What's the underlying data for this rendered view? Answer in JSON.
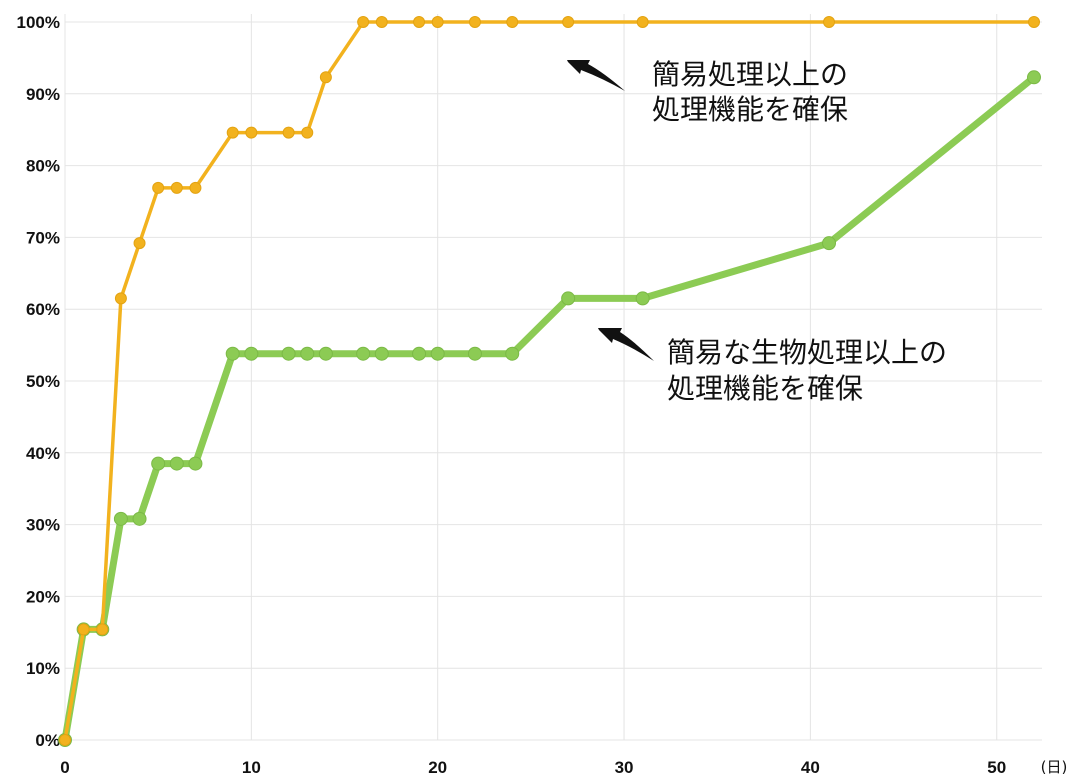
{
  "chart_data": {
    "type": "line",
    "title": "",
    "xlabel": "",
    "ylabel": "",
    "x_unit": "(日)",
    "xlim": [
      0,
      52
    ],
    "ylim": [
      0,
      100
    ],
    "x_ticks": [
      0,
      10,
      20,
      30,
      40,
      50
    ],
    "x_tick_labels": [
      "0",
      "10",
      "20",
      "30",
      "40",
      "50"
    ],
    "y_ticks": [
      0,
      10,
      20,
      30,
      40,
      50,
      60,
      70,
      80,
      90,
      100
    ],
    "y_tick_labels": [
      "0%",
      "10%",
      "20%",
      "30%",
      "40%",
      "50%",
      "60%",
      "70%",
      "80%",
      "90%",
      "100%"
    ],
    "grid": true,
    "legend": "none",
    "series": [
      {
        "color": "#F2B21E",
        "points": [
          [
            0,
            0
          ],
          [
            1,
            15.4
          ],
          [
            2,
            15.4
          ],
          [
            3,
            61.5
          ],
          [
            4,
            69.2
          ],
          [
            5,
            76.9
          ],
          [
            6,
            76.9
          ],
          [
            7,
            76.9
          ],
          [
            9,
            84.6
          ],
          [
            10,
            84.6
          ],
          [
            12,
            84.6
          ],
          [
            13,
            84.6
          ],
          [
            14,
            92.3
          ],
          [
            16,
            100
          ],
          [
            17,
            100
          ],
          [
            19,
            100
          ],
          [
            20,
            100
          ],
          [
            22,
            100
          ],
          [
            24,
            100
          ],
          [
            27,
            100
          ],
          [
            31,
            100
          ],
          [
            41,
            100
          ],
          [
            52,
            100
          ]
        ]
      },
      {
        "color": "#8CCB54",
        "points": [
          [
            0,
            0
          ],
          [
            1,
            15.4
          ],
          [
            2,
            15.4
          ],
          [
            3,
            30.8
          ],
          [
            4,
            30.8
          ],
          [
            5,
            38.5
          ],
          [
            6,
            38.5
          ],
          [
            7,
            38.5
          ],
          [
            9,
            53.8
          ],
          [
            10,
            53.8
          ],
          [
            12,
            53.8
          ],
          [
            13,
            53.8
          ],
          [
            14,
            53.8
          ],
          [
            16,
            53.8
          ],
          [
            17,
            53.8
          ],
          [
            19,
            53.8
          ],
          [
            20,
            53.8
          ],
          [
            22,
            53.8
          ],
          [
            24,
            53.8
          ],
          [
            27,
            61.5
          ],
          [
            31,
            61.5
          ],
          [
            41,
            69.2
          ],
          [
            52,
            92.3
          ]
        ]
      }
    ],
    "annotations": [
      {
        "lines": [
          "簡易処理以上の",
          "処理機能を確保"
        ],
        "points_to_series": 0
      },
      {
        "lines": [
          "簡易な生物処理以上の",
          "処理機能を確保"
        ],
        "points_to_series": 1
      }
    ]
  }
}
